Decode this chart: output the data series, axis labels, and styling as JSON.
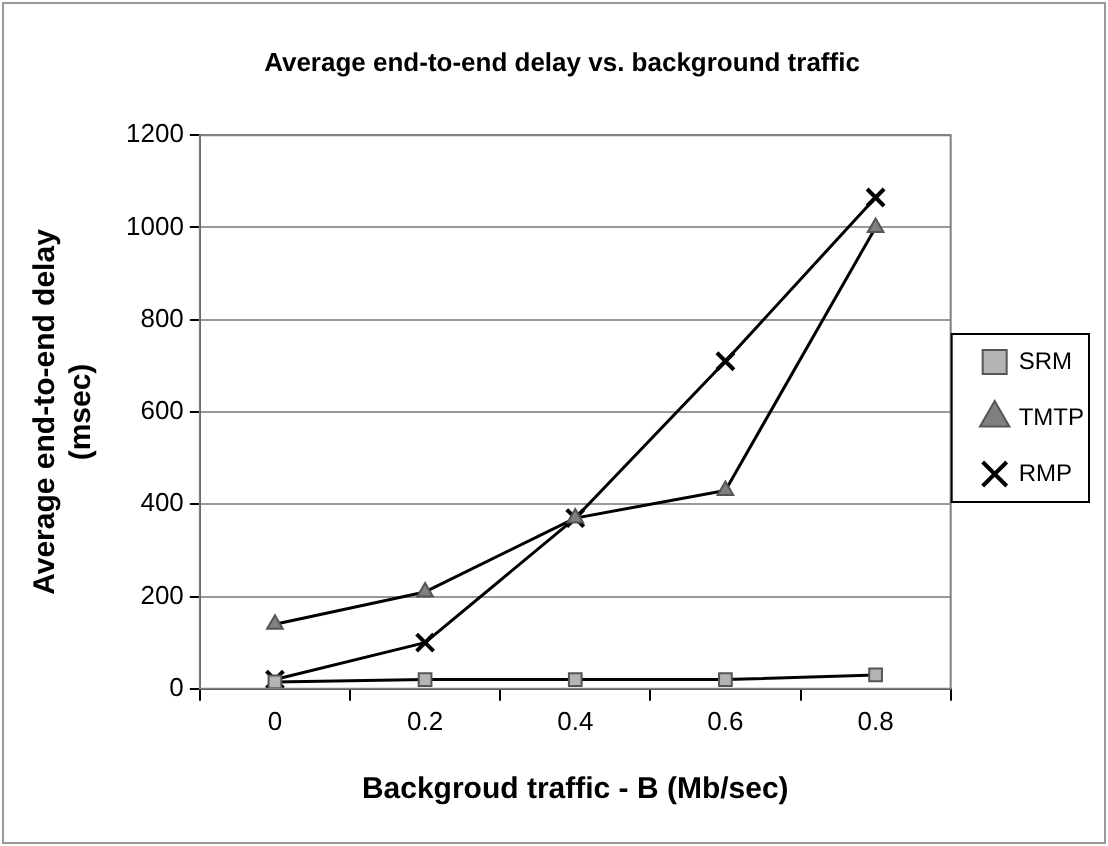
{
  "chart_data": {
    "type": "line",
    "title": "Average end-to-end delay vs. background traffic",
    "xlabel": "Backgroud traffic - B (Mb/sec)",
    "ylabel": "Average end-to-end delay (msec)",
    "categories": [
      "0",
      "0.2",
      "0.4",
      "0.6",
      "0.8"
    ],
    "series": [
      {
        "name": "SRM",
        "color": "#b4b4b4",
        "marker": "square",
        "values": [
          15,
          20,
          20,
          20,
          30
        ]
      },
      {
        "name": "TMTP",
        "color": "#808080",
        "marker": "triangle",
        "values": [
          140,
          210,
          370,
          430,
          1000
        ]
      },
      {
        "name": "RMP",
        "color": "#000000",
        "marker": "cross",
        "values": [
          20,
          100,
          370,
          710,
          1065
        ]
      }
    ],
    "ylim": [
      0,
      1200
    ],
    "yticks": [
      0,
      200,
      400,
      600,
      800,
      1000,
      1200
    ],
    "grid": "y",
    "legend": "right",
    "line_style": "solid"
  }
}
